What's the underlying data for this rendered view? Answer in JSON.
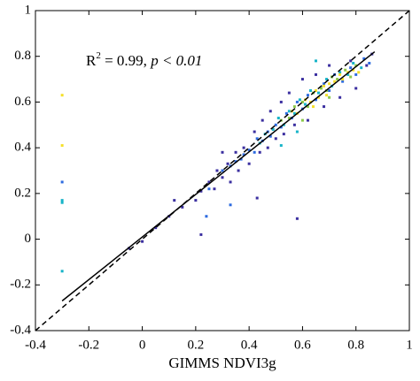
{
  "chart_data": {
    "type": "scatter",
    "xlabel": "GIMMS NDVI3g",
    "annotation": [
      "R",
      "2",
      " = 0.99, ",
      "p",
      " < 0.01"
    ],
    "xlim": [
      -0.4,
      1
    ],
    "ylim": [
      -0.4,
      1
    ],
    "xticks": [
      -0.4,
      -0.2,
      0,
      0.2,
      0.4,
      0.6,
      0.8,
      1
    ],
    "yticks": [
      -0.4,
      -0.2,
      0,
      0.2,
      0.4,
      0.6,
      0.8,
      1
    ],
    "grid": false,
    "series": [
      {
        "color": "#3b2fa0",
        "x": [
          -0.05,
          0.0,
          0.05,
          0.1,
          0.15,
          0.2,
          0.22,
          0.25,
          0.27,
          0.28,
          0.3,
          0.32,
          0.33,
          0.35,
          0.36,
          0.38,
          0.4,
          0.42,
          0.44,
          0.45,
          0.47,
          0.48,
          0.5,
          0.52,
          0.53,
          0.55,
          0.57,
          0.6,
          0.62,
          0.65,
          0.68,
          0.7,
          0.74,
          0.78,
          0.8,
          0.84,
          0.86,
          0.22,
          0.58,
          0.43,
          0.12,
          0.3
        ],
        "values": [
          -0.04,
          -0.01,
          0.05,
          0.1,
          0.14,
          0.17,
          0.21,
          0.25,
          0.22,
          0.3,
          0.27,
          0.33,
          0.25,
          0.38,
          0.3,
          0.4,
          0.33,
          0.47,
          0.38,
          0.52,
          0.4,
          0.56,
          0.44,
          0.6,
          0.46,
          0.64,
          0.5,
          0.7,
          0.52,
          0.72,
          0.58,
          0.76,
          0.62,
          0.78,
          0.66,
          0.76,
          0.81,
          0.02,
          0.09,
          0.18,
          0.17,
          0.38
        ]
      },
      {
        "color": "#2d6be0",
        "x": [
          -0.3,
          0.25,
          0.3,
          0.33,
          0.35,
          0.37,
          0.38,
          0.4,
          0.42,
          0.43,
          0.45,
          0.47,
          0.48,
          0.5,
          0.52,
          0.54,
          0.56,
          0.58,
          0.6,
          0.62,
          0.65,
          0.68,
          0.7,
          0.72,
          0.75,
          0.78,
          0.8,
          0.83,
          0.85,
          0.24,
          0.33
        ],
        "values": [
          0.25,
          0.22,
          0.3,
          0.32,
          0.34,
          0.35,
          0.37,
          0.39,
          0.38,
          0.44,
          0.43,
          0.47,
          0.45,
          0.5,
          0.49,
          0.55,
          0.53,
          0.6,
          0.57,
          0.63,
          0.61,
          0.68,
          0.65,
          0.72,
          0.69,
          0.75,
          0.72,
          0.79,
          0.77,
          0.1,
          0.15
        ]
      },
      {
        "color": "#17b4c8",
        "x": [
          -0.3,
          -0.3,
          -0.3,
          0.44,
          0.46,
          0.49,
          0.51,
          0.53,
          0.55,
          0.57,
          0.59,
          0.61,
          0.63,
          0.66,
          0.69,
          0.71,
          0.74,
          0.77,
          0.79,
          0.82,
          0.65,
          0.58,
          0.52
        ],
        "values": [
          0.17,
          0.16,
          -0.14,
          0.42,
          0.46,
          0.48,
          0.53,
          0.5,
          0.56,
          0.55,
          0.61,
          0.59,
          0.65,
          0.64,
          0.7,
          0.67,
          0.73,
          0.72,
          0.77,
          0.75,
          0.78,
          0.47,
          0.41
        ]
      },
      {
        "color": "#8cc94a",
        "x": [
          0.52,
          0.55,
          0.57,
          0.6,
          0.62,
          0.64,
          0.67,
          0.69,
          0.71,
          0.73,
          0.76,
          0.78,
          0.8,
          0.6,
          0.7
        ],
        "values": [
          0.52,
          0.53,
          0.58,
          0.6,
          0.58,
          0.64,
          0.66,
          0.65,
          0.71,
          0.7,
          0.74,
          0.71,
          0.76,
          0.52,
          0.62
        ]
      },
      {
        "color": "#f5e02a",
        "x": [
          -0.3,
          -0.3,
          0.56,
          0.58,
          0.61,
          0.63,
          0.65,
          0.66,
          0.68,
          0.7,
          0.72,
          0.74,
          0.75,
          0.77,
          0.79,
          0.81,
          0.64,
          0.69
        ],
        "values": [
          0.63,
          0.41,
          0.56,
          0.55,
          0.61,
          0.6,
          0.65,
          0.62,
          0.67,
          0.68,
          0.69,
          0.72,
          0.7,
          0.73,
          0.74,
          0.73,
          0.58,
          0.63
        ]
      }
    ],
    "fit_line": {
      "color": "#000000",
      "x": [
        -0.3,
        0.87
      ],
      "values": [
        -0.27,
        0.82
      ]
    },
    "reference_line": {
      "color": "#000000",
      "x": [
        -0.4,
        1
      ],
      "values": [
        -0.4,
        1
      ]
    }
  }
}
